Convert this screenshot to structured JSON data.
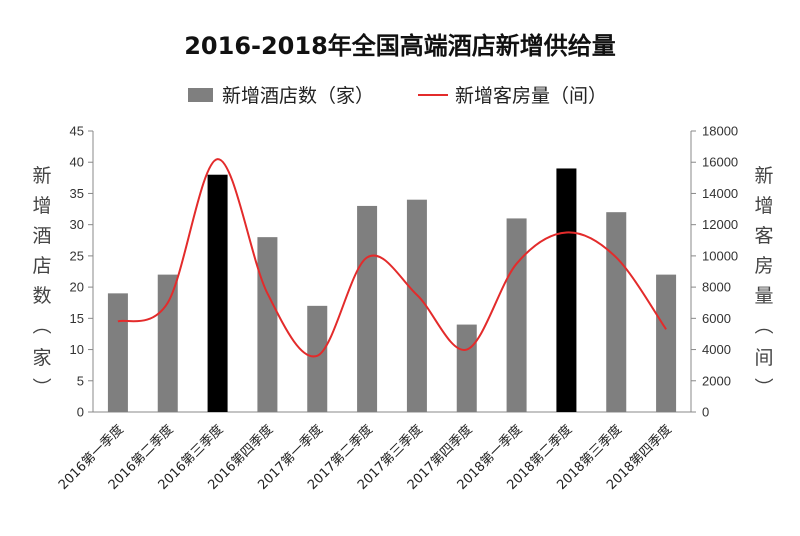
{
  "chart_data": {
    "type": "bar",
    "title": "2016-2018年全国高端酒店新增供给量",
    "categories": [
      "2016第一季度",
      "2016第二季度",
      "2016第三季度",
      "2016第四季度",
      "2017第一季度",
      "2017第二季度",
      "2017第三季度",
      "2017第四季度",
      "2018第一季度",
      "2018第二季度",
      "2018第三季度",
      "2018第四季度"
    ],
    "series": [
      {
        "name": "新增酒店数（家）",
        "type": "bar",
        "axis": "left",
        "values": [
          19,
          22,
          38,
          28,
          17,
          33,
          34,
          14,
          31,
          39,
          32,
          22
        ],
        "highlight": [
          2,
          9
        ]
      },
      {
        "name": "新增客房量（间）",
        "type": "line",
        "axis": "right",
        "smooth": true,
        "values": [
          5800,
          7000,
          16200,
          7600,
          3600,
          9900,
          7500,
          4000,
          9500,
          11500,
          9900,
          5300
        ]
      }
    ],
    "y_left": {
      "label": "新增酒店数（家）",
      "min": 0,
      "max": 45,
      "step": 5,
      "ticks": [
        "0",
        "5",
        "10",
        "15",
        "20",
        "25",
        "30",
        "35",
        "40",
        "45"
      ]
    },
    "y_right": {
      "label": "新增客房量（间）",
      "min": 0,
      "max": 18000,
      "step": 2000,
      "ticks": [
        "0",
        "2000",
        "4000",
        "6000",
        "8000",
        "10000",
        "12000",
        "14000",
        "16000",
        "18000"
      ]
    },
    "grid": false,
    "legend_position": "top-center",
    "colors": {
      "bar": "#7f7f7f",
      "bar_highlight": "#000000",
      "line": "#e32b2b",
      "line_fade": "#f29a9a"
    }
  }
}
